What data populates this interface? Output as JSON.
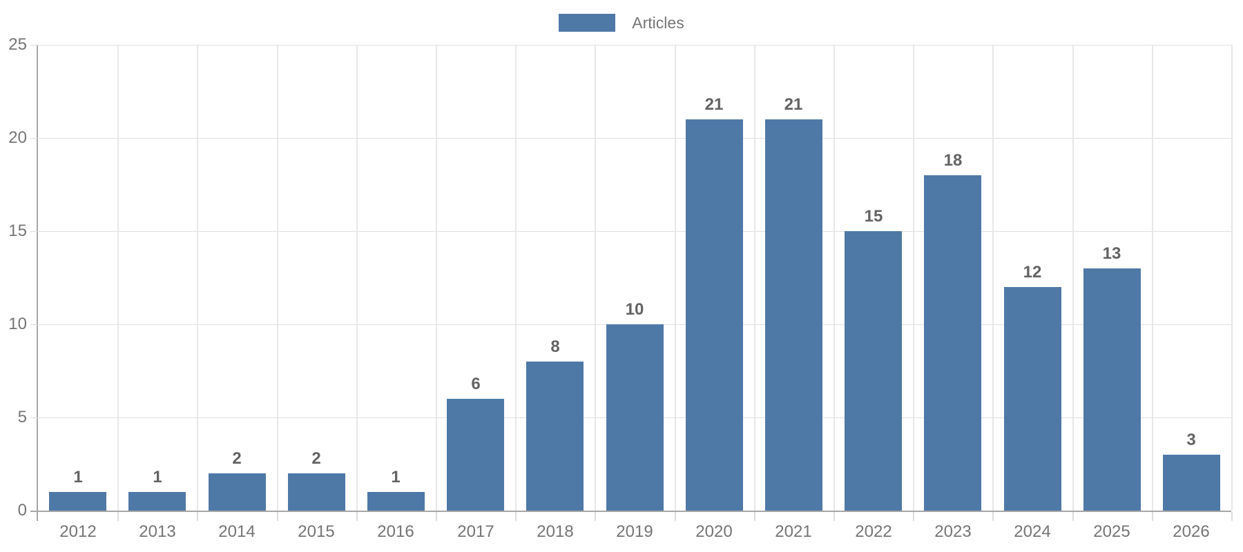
{
  "chart_data": {
    "type": "bar",
    "categories": [
      "2012",
      "2013",
      "2014",
      "2015",
      "2016",
      "2017",
      "2018",
      "2019",
      "2020",
      "2021",
      "2022",
      "2023",
      "2024",
      "2025",
      "2026"
    ],
    "series": [
      {
        "name": "Articles",
        "color": "#4e79a7",
        "values": [
          1,
          1,
          2,
          2,
          1,
          6,
          8,
          10,
          21,
          21,
          15,
          18,
          12,
          13,
          3
        ]
      }
    ],
    "xlabel": "",
    "ylabel": "",
    "ylim": [
      0,
      25
    ],
    "yticks": [
      0,
      5,
      10,
      15,
      20,
      25
    ],
    "grid": "both",
    "value_labels_shown": true,
    "legend": {
      "label": "Articles",
      "position": "top-center"
    },
    "colors": {
      "bar": "#4e79a7",
      "grid_line_horizontal": "#e0e0e0",
      "grid_line_vertical": "#e7e7e7",
      "axis_line": "#a6a6a6",
      "tick_mark": "#dcdcdc",
      "tick_label": "#757575",
      "value_label": "#636363",
      "legend_text": "#757575",
      "background": "#ffffff"
    }
  }
}
